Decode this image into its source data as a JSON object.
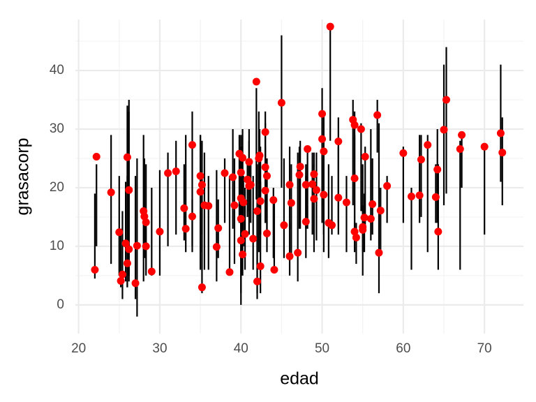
{
  "chart_data": {
    "type": "scatter",
    "x_label": "edad",
    "y_label": "grasacorp",
    "xlim": [
      19.6,
      74.8
    ],
    "ylim": [
      -4.9,
      48.7
    ],
    "xticks": [
      20,
      30,
      40,
      50,
      60,
      70
    ],
    "yticks": [
      0,
      10,
      20,
      30,
      40
    ],
    "x_minor_grid": [
      25,
      35,
      45,
      55,
      65
    ],
    "y_minor_grid": [
      5,
      15,
      25,
      35,
      45
    ],
    "grid": true,
    "series": [
      {
        "color": "#ff0000",
        "range_color": "#000000",
        "x": [
          22,
          22.2,
          24,
          25,
          25.2,
          25.4,
          25.8,
          26,
          26,
          26.2,
          26.2,
          27,
          27.2,
          28,
          28.1,
          28.3,
          28.3,
          29,
          30,
          31,
          32,
          33,
          33.2,
          34,
          34,
          35,
          35,
          35.2,
          35.2,
          35.5,
          36,
          37,
          37.2,
          38,
          38.6,
          39,
          39.2,
          39.8,
          40,
          40,
          40,
          40,
          40.2,
          40.2,
          40.3,
          40.5,
          40.8,
          41,
          41,
          41.2,
          41.5,
          41.9,
          42,
          42,
          42.2,
          42.3,
          42.4,
          42.4,
          43,
          43,
          43,
          43.2,
          43.2,
          44,
          44.1,
          45,
          45.3,
          46,
          46,
          46.2,
          47,
          47.2,
          47.3,
          48,
          48,
          48.2,
          48.8,
          49,
          49,
          49.3,
          50,
          50,
          50.2,
          50.2,
          50.8,
          51,
          51.2,
          52,
          52,
          53,
          53.8,
          54,
          54,
          54,
          54.2,
          54.8,
          55,
          55,
          55.2,
          55.3,
          56,
          56.2,
          56.8,
          57,
          57.2,
          58,
          60,
          61,
          62,
          62.2,
          63,
          64,
          64.2,
          64.3,
          65,
          65.3,
          67,
          67.2,
          70,
          72,
          72.2
        ],
        "values": [
          6,
          25.3,
          19.2,
          12.4,
          4.1,
          5.2,
          10.5,
          25.2,
          7.1,
          19.6,
          9.5,
          3.7,
          10.1,
          16,
          15.1,
          14.1,
          10,
          5.7,
          12.5,
          22.5,
          22.8,
          16.5,
          13,
          15.1,
          27.3,
          22,
          19.3,
          20.5,
          3,
          17,
          16.9,
          9.9,
          13.1,
          22.5,
          5.6,
          21.8,
          17,
          25.8,
          22.6,
          18.2,
          14.7,
          11,
          25.1,
          8.6,
          17.5,
          12.1,
          21.4,
          20.3,
          24.4,
          20.5,
          11.3,
          38.1,
          16,
          4,
          25,
          25.5,
          17.7,
          6.6,
          19.5,
          29.5,
          23.5,
          22,
          12.2,
          17.9,
          6,
          34.5,
          13.6,
          20.5,
          8.3,
          17.4,
          8.9,
          22.2,
          23.6,
          20.5,
          14.2,
          26.6,
          20.6,
          22.3,
          18.1,
          19.6,
          32.6,
          28.3,
          26.2,
          18.8,
          14,
          47.5,
          13.6,
          18.3,
          27.9,
          17.5,
          31.6,
          30.7,
          21.6,
          12.5,
          11.5,
          30,
          13.3,
          12.8,
          14.9,
          25.3,
          14.7,
          17.2,
          32.4,
          8.9,
          16.1,
          20.3,
          25.9,
          18.5,
          18.7,
          24.8,
          27.3,
          18.4,
          23.1,
          12.5,
          29.9,
          35,
          26.6,
          29,
          27,
          29.3,
          26
        ],
        "low": [
          4.5,
          10,
          7,
          5,
          3,
          1,
          4,
          3,
          3,
          5,
          4,
          1,
          -2,
          4,
          8,
          6,
          5,
          5,
          5,
          10,
          12,
          11,
          9,
          9,
          10,
          9,
          6,
          12,
          2,
          6,
          6,
          4,
          8,
          14,
          5,
          13,
          7,
          14,
          10,
          0,
          8,
          2,
          12,
          5,
          10,
          6,
          15,
          12,
          16,
          14,
          6,
          18,
          1,
          2,
          9,
          15,
          12,
          2,
          14,
          16,
          14,
          12,
          9,
          8,
          6,
          20,
          8,
          13,
          5,
          8,
          4,
          13,
          13,
          13,
          8,
          13,
          12,
          12,
          9,
          11,
          17,
          14,
          9,
          12,
          8,
          28,
          12,
          14,
          12,
          9,
          17,
          21,
          12,
          9,
          7,
          16,
          5,
          9,
          9,
          13,
          11,
          12,
          26,
          2,
          9,
          14,
          14,
          6,
          14,
          15,
          9,
          14,
          14,
          6,
          17,
          19,
          6,
          20,
          12,
          21,
          17
        ],
        "high": [
          19,
          24,
          29,
          22,
          13,
          16,
          21,
          34,
          22,
          35,
          33,
          22,
          25,
          29,
          25,
          24,
          15,
          20,
          23,
          26,
          28,
          24,
          29,
          18,
          33,
          29,
          29,
          28,
          22,
          26,
          22,
          23,
          18,
          25,
          22,
          30,
          25,
          29,
          27,
          27,
          29,
          17,
          30,
          26,
          22,
          20,
          24,
          28,
          30,
          25,
          22,
          37,
          24,
          17,
          33,
          30,
          27,
          21,
          27,
          33,
          31,
          25,
          25,
          20,
          18,
          46,
          25,
          27,
          14,
          24,
          26,
          27,
          28,
          24,
          22,
          27,
          26,
          26,
          24,
          26,
          37,
          33,
          33,
          25,
          24,
          47,
          22,
          27,
          32,
          22,
          35,
          33,
          29,
          23,
          14,
          31,
          24,
          17,
          19,
          27,
          30,
          25,
          35,
          31,
          20,
          22,
          27,
          20,
          29,
          29,
          29,
          24,
          30,
          24,
          41,
          44,
          28,
          29,
          27,
          41,
          32
        ]
      }
    ]
  }
}
